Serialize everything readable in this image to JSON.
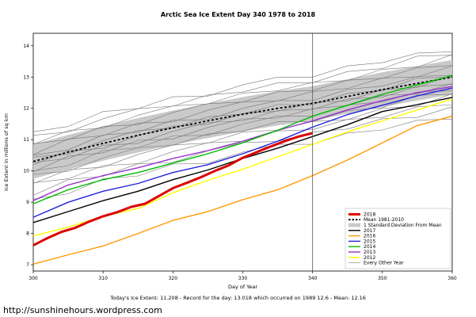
{
  "page": {
    "footer": "Today's Ice Extent: 11.208 - Record for the day: 13.018 which occurred on 1989 12.6 - Mean: 12.16",
    "url": "http://sunshinehours.wordpress.com"
  },
  "chart_data": {
    "type": "line",
    "title": "Arctic Sea Ice Extent Day 340 1978 to 2018",
    "xlabel": "Day of Year",
    "ylabel": "Ice Extent in millions of sq km",
    "xlim": [
      300,
      360
    ],
    "ylim": [
      6.8,
      14.4
    ],
    "xticks": [
      300,
      310,
      320,
      330,
      340,
      350,
      360
    ],
    "yticks": [
      7,
      8,
      9,
      10,
      11,
      12,
      13,
      14
    ],
    "vline_x": 340,
    "grid": false,
    "legend_position": "bottom-right",
    "days": [
      300,
      305,
      310,
      315,
      320,
      325,
      330,
      335,
      340,
      345,
      350,
      355,
      360
    ],
    "mean_1981_2010": [
      10.3,
      10.6,
      10.88,
      11.14,
      11.38,
      11.6,
      11.81,
      12.0,
      12.16,
      12.38,
      12.6,
      12.8,
      13.0
    ],
    "std_band": {
      "upper": [
        10.85,
        11.15,
        11.43,
        11.69,
        11.93,
        12.15,
        12.36,
        12.55,
        12.71,
        12.93,
        13.15,
        13.35,
        13.55
      ],
      "lower": [
        9.75,
        10.05,
        10.33,
        10.59,
        10.83,
        11.05,
        11.26,
        11.45,
        11.61,
        11.83,
        12.05,
        12.25,
        12.45
      ]
    },
    "series": [
      {
        "name": "2018",
        "color": "#dd0000",
        "width": 3,
        "days": [
          300,
          302,
          304,
          306,
          308,
          310,
          312,
          314,
          316,
          318,
          320,
          322,
          324,
          326,
          328,
          330,
          332,
          334,
          336,
          338,
          340
        ],
        "values": [
          7.62,
          7.85,
          8.05,
          8.18,
          8.38,
          8.55,
          8.68,
          8.85,
          8.95,
          9.2,
          9.45,
          9.62,
          9.8,
          10.0,
          10.18,
          10.42,
          10.6,
          10.78,
          10.95,
          11.1,
          11.21
        ]
      },
      {
        "name": "2017",
        "color": "#000000",
        "width": 1.4,
        "values": [
          8.35,
          8.7,
          9.05,
          9.35,
          9.72,
          10.03,
          10.4,
          10.73,
          11.1,
          11.48,
          11.9,
          12.12,
          12.35
        ]
      },
      {
        "name": "2016",
        "color": "#ff9900",
        "width": 1.4,
        "values": [
          7.02,
          7.32,
          7.6,
          8.0,
          8.42,
          8.7,
          9.08,
          9.4,
          9.85,
          10.35,
          10.9,
          11.45,
          11.75
        ]
      },
      {
        "name": "2015",
        "color": "#2222dd",
        "width": 1.4,
        "values": [
          8.52,
          9.0,
          9.35,
          9.6,
          9.95,
          10.2,
          10.55,
          10.95,
          11.4,
          11.8,
          12.1,
          12.4,
          12.65
        ]
      },
      {
        "name": "2014",
        "color": "#00bb00",
        "width": 1.4,
        "values": [
          8.95,
          9.4,
          9.72,
          9.95,
          10.25,
          10.55,
          10.9,
          11.3,
          11.75,
          12.1,
          12.45,
          12.75,
          13.05
        ]
      },
      {
        "name": "2013",
        "color": "#9933cc",
        "width": 1.4,
        "values": [
          9.05,
          9.55,
          9.85,
          10.1,
          10.4,
          10.65,
          10.95,
          11.3,
          11.6,
          11.95,
          12.25,
          12.5,
          12.7
        ]
      },
      {
        "name": "2012",
        "color": "#ffff00",
        "width": 1.4,
        "values": [
          7.92,
          8.2,
          8.55,
          8.8,
          9.3,
          9.7,
          10.05,
          10.45,
          10.85,
          11.25,
          11.6,
          11.95,
          12.3
        ]
      }
    ],
    "every_other_year": [
      [
        9.1,
        9.27,
        9.75,
        9.84,
        10.22,
        10.24,
        10.6,
        10.85,
        10.85,
        11.21,
        11.31,
        11.62,
        11.66
      ],
      [
        9.22,
        9.72,
        9.83,
        10.23,
        10.27,
        10.64,
        10.91,
        10.94,
        11.24,
        11.34,
        11.67,
        11.71,
        12.05
      ],
      [
        9.62,
        9.75,
        10.17,
        10.23,
        10.62,
        10.9,
        10.95,
        11.28,
        11.32,
        11.65,
        11.71,
        12.05,
        12.12
      ],
      [
        9.6,
        10.04,
        10.12,
        10.53,
        10.83,
        10.89,
        11.24,
        11.31,
        11.58,
        11.64,
        12.0,
        12.07,
        12.47
      ],
      [
        9.89,
        9.99,
        10.42,
        10.74,
        10.82,
        11.18,
        11.27,
        11.57,
        11.57,
        11.93,
        12.02,
        12.42,
        12.45
      ],
      [
        10.0,
        10.17,
        10.65,
        10.74,
        11.12,
        11.14,
        11.5,
        11.75,
        11.75,
        12.11,
        12.21,
        12.52,
        12.56
      ],
      [
        9.97,
        10.47,
        10.58,
        10.98,
        11.02,
        11.39,
        11.66,
        11.69,
        11.99,
        12.09,
        12.42,
        12.46,
        12.8
      ],
      [
        10.27,
        10.4,
        10.82,
        10.88,
        11.27,
        11.55,
        11.6,
        11.93,
        11.97,
        12.3,
        12.36,
        12.7,
        12.77
      ],
      [
        10.2,
        10.64,
        10.72,
        11.13,
        11.43,
        11.49,
        11.84,
        11.91,
        12.18,
        12.24,
        12.6,
        12.67,
        13.07
      ],
      [
        10.44,
        10.54,
        10.97,
        11.29,
        11.37,
        11.73,
        11.82,
        12.12,
        12.12,
        12.48,
        12.57,
        12.97,
        13.0
      ],
      [
        10.5,
        10.67,
        11.15,
        11.24,
        11.62,
        11.64,
        12.0,
        12.25,
        12.25,
        12.61,
        12.71,
        13.02,
        13.06
      ],
      [
        10.52,
        11.02,
        11.13,
        11.53,
        11.57,
        11.94,
        12.21,
        12.24,
        12.54,
        12.64,
        12.97,
        13.01,
        13.35
      ],
      [
        10.87,
        11.0,
        11.42,
        11.48,
        11.87,
        12.15,
        12.2,
        12.53,
        12.57,
        12.9,
        12.96,
        13.3,
        13.37
      ],
      [
        10.85,
        11.29,
        11.37,
        11.78,
        12.08,
        12.14,
        12.49,
        12.56,
        12.83,
        12.89,
        13.25,
        13.32,
        13.72
      ],
      [
        11.14,
        11.24,
        11.67,
        11.99,
        12.07,
        12.43,
        12.52,
        12.82,
        12.82,
        13.18,
        13.27,
        13.67,
        13.7
      ],
      [
        11.25,
        11.42,
        11.9,
        11.99,
        12.37,
        12.39,
        12.75,
        13.0,
        13.0,
        13.36,
        13.46,
        13.77,
        13.81
      ]
    ],
    "colors": {
      "band": "#c9c9c9",
      "other_years": "#777777",
      "vline": "#555555",
      "mean": "#000000"
    },
    "legend": [
      {
        "label": "2018",
        "color": "#dd0000",
        "style": "thick"
      },
      {
        "label": "Mean 1981-2010",
        "color": "#000000",
        "style": "dashed"
      },
      {
        "label": "1 Standard Deviation From Mean",
        "color": "#c9c9c9",
        "style": "band"
      },
      {
        "label": "2017",
        "color": "#000000",
        "style": "line"
      },
      {
        "label": "2016",
        "color": "#ff9900",
        "style": "line"
      },
      {
        "label": "2015",
        "color": "#2222dd",
        "style": "line"
      },
      {
        "label": "2014",
        "color": "#00bb00",
        "style": "line"
      },
      {
        "label": "2013",
        "color": "#9933cc",
        "style": "line"
      },
      {
        "label": "2012",
        "color": "#ffff00",
        "style": "line"
      },
      {
        "label": "Every Other Year",
        "color": "#777777",
        "style": "thin"
      }
    ]
  }
}
